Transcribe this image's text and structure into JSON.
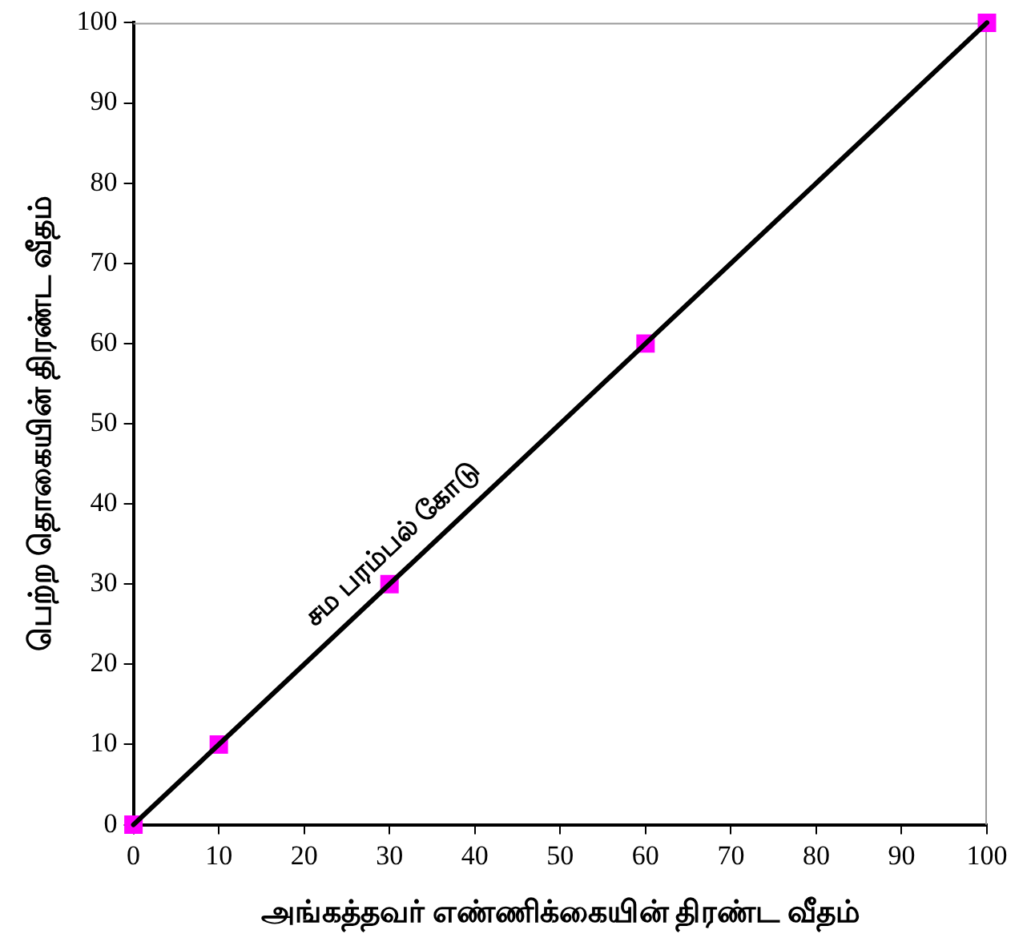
{
  "chart_data": {
    "type": "line",
    "xlabel": "அங்கத்தவர் எண்ணிக்கையின் திரண்ட வீதம்",
    "ylabel": "பெற்ற தொகையின் திரண்ட வீதம்",
    "series": [
      {
        "name": "சம பரம்பல் கோடு",
        "color": "#000000",
        "marker": "none",
        "x": [
          0,
          10,
          30,
          60,
          100
        ],
        "values": [
          0,
          10,
          30,
          60,
          100
        ]
      },
      {
        "type": "scatter",
        "color": "#ff00ff",
        "x": [
          0,
          10,
          30,
          60,
          100
        ],
        "values": [
          0,
          10,
          30,
          60,
          100
        ]
      }
    ],
    "xlim": [
      0,
      100
    ],
    "xticks": [
      0,
      10,
      20,
      30,
      40,
      50,
      60,
      70,
      80,
      90,
      100
    ],
    "ylim": [
      0,
      100
    ],
    "yticks": [
      0,
      10,
      20,
      30,
      40,
      50,
      60,
      70,
      80,
      90,
      100
    ],
    "grid": false,
    "legend": false,
    "marker": "square",
    "line_style": "solid"
  }
}
